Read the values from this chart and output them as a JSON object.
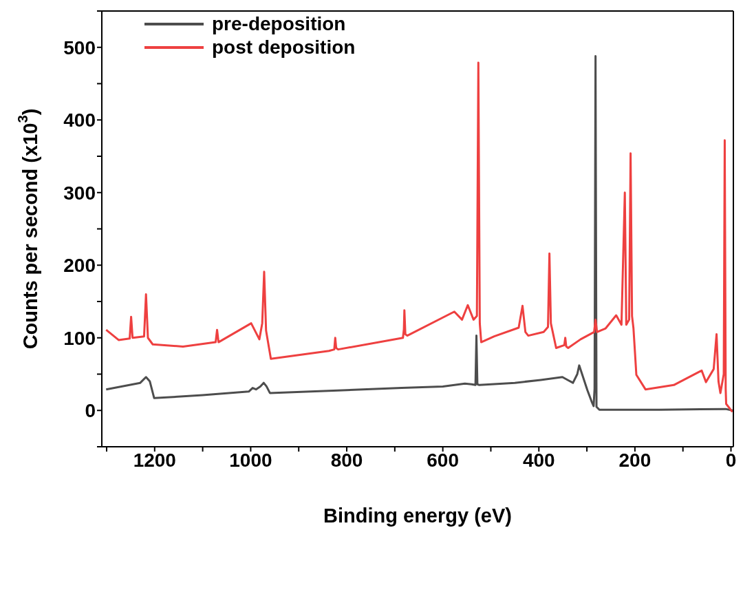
{
  "chart_data": {
    "type": "line",
    "xlabel": "Binding energy (eV)",
    "ylabel": "Counts per second (x10$^{3}$)",
    "xlim": [
      1310,
      -5
    ],
    "ylim": [
      -50,
      550
    ],
    "xticks": [
      0,
      {
        "value": 100,
        "label": null
      },
      200,
      {
        "value": 300,
        "label": null
      },
      400,
      {
        "value": 500,
        "label": null
      },
      600,
      {
        "value": 700,
        "label": null
      },
      800,
      {
        "value": 900,
        "label": null
      },
      1000,
      {
        "value": 1100,
        "label": null
      },
      1200,
      {
        "value": 1300,
        "label": null
      }
    ],
    "yticks": [
      {
        "value": -50,
        "label": null
      },
      0,
      {
        "value": 50,
        "label": null
      },
      100,
      {
        "value": 150,
        "label": null
      },
      200,
      {
        "value": 250,
        "label": null
      },
      300,
      {
        "value": 350,
        "label": null
      },
      400,
      {
        "value": 450,
        "label": null
      },
      500,
      {
        "value": 550,
        "label": null
      }
    ],
    "legend": "top left",
    "marker": "none",
    "line_style": "solid",
    "series": [
      {
        "name": "pre-deposition",
        "color": "#4d4d4d",
        "x": [
          1301,
          1230,
          1218,
          1210,
          1201,
          1100,
          1004,
          996,
          989,
          980,
          973,
          967,
          960,
          800,
          686,
          600,
          554,
          540,
          532,
          530,
          528,
          524,
          450,
          396,
          351,
          340,
          329,
          320,
          316,
          310,
          299,
          290,
          286,
          284,
          282,
          280,
          274,
          150,
          11,
          -3
        ],
        "values": [
          29,
          38,
          46,
          40,
          17,
          21,
          26,
          31,
          29,
          33,
          38,
          33,
          24,
          28,
          31,
          33,
          37,
          36,
          35,
          103,
          36,
          35,
          38,
          42,
          46,
          42,
          38,
          50,
          62,
          50,
          28,
          12,
          6,
          30,
          488,
          5,
          1,
          1,
          2,
          0
        ]
      },
      {
        "name": "post deposition",
        "color": "#ee4040",
        "x": [
          1301,
          1275,
          1252,
          1249,
          1246,
          1222,
          1218,
          1214,
          1204,
          1141,
          1073,
          1070,
          1067,
          999,
          982,
          976,
          972,
          968,
          958,
          837,
          826,
          824,
          822,
          818,
          683,
          681,
          680,
          678,
          674,
          576,
          560,
          548,
          536,
          529,
          526,
          523,
          520,
          493,
          442,
          434,
          428,
          422,
          390,
          381,
          378,
          375,
          364,
          347,
          345,
          343,
          339,
          313,
          285,
          282,
          279,
          261,
          239,
          228,
          221,
          218,
          212,
          209,
          206,
          203,
          197,
          178,
          119,
          61,
          52,
          36,
          30,
          26,
          22,
          15,
          13,
          11,
          10,
          -3
        ],
        "values": [
          111,
          97,
          99,
          129,
          100,
          102,
          160,
          100,
          91,
          88,
          94,
          111,
          94,
          120,
          98,
          120,
          191,
          110,
          71,
          82,
          84,
          100,
          86,
          84,
          100,
          112,
          138,
          105,
          103,
          136,
          125,
          145,
          125,
          130,
          479,
          120,
          94,
          102,
          114,
          144,
          108,
          103,
          108,
          115,
          216,
          120,
          86,
          90,
          100,
          88,
          86,
          98,
          108,
          125,
          108,
          113,
          131,
          118,
          300,
          118,
          125,
          354,
          130,
          113,
          49,
          29,
          35,
          55,
          39,
          57,
          105,
          40,
          24,
          50,
          372,
          30,
          9,
          -2
        ]
      }
    ]
  }
}
